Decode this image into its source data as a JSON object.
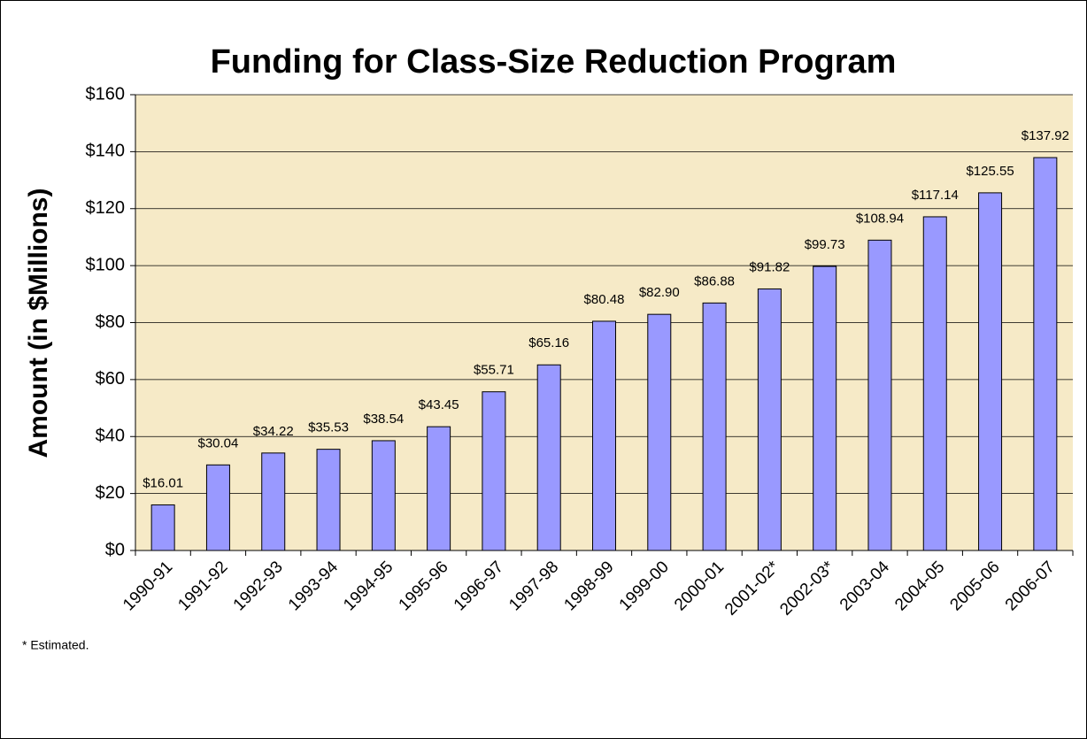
{
  "chart_data": {
    "type": "bar",
    "title": "Funding for Class-Size Reduction Program",
    "y_label": "Amount (in $Millions)",
    "footnote": "* Estimated.",
    "categories": [
      "1990-91",
      "1991-92",
      "1992-93",
      "1993-94",
      "1994-95",
      "1995-96",
      "1996-97",
      "1997-98",
      "1998-99",
      "1999-00",
      "2000-01",
      "2001-02*",
      "2002-03*",
      "2003-04",
      "2004-05",
      "2005-06",
      "2006-07"
    ],
    "values": [
      16.01,
      30.04,
      34.22,
      35.53,
      38.54,
      43.45,
      55.71,
      65.16,
      80.48,
      82.9,
      86.88,
      91.82,
      99.73,
      108.94,
      117.14,
      125.55,
      137.92
    ],
    "value_labels": [
      "$16.01",
      "$30.04",
      "$34.22",
      "$35.53",
      "$38.54",
      "$43.45",
      "$55.71",
      "$65.16",
      "$80.48",
      "$82.90",
      "$86.88",
      "$91.82",
      "$99.73",
      "$108.94",
      "$117.14",
      "$125.55",
      "$137.92"
    ],
    "color": "#9999ff",
    "ylim": [
      0,
      160
    ],
    "yticks": [
      {
        "value": 0,
        "label": "$0"
      },
      {
        "value": 20,
        "label": "$20"
      },
      {
        "value": 40,
        "label": "$40"
      },
      {
        "value": 60,
        "label": "$60"
      },
      {
        "value": 80,
        "label": "$80"
      },
      {
        "value": 100,
        "label": "$100"
      },
      {
        "value": 120,
        "label": "$120"
      },
      {
        "value": 140,
        "label": "$140"
      },
      {
        "value": 160,
        "label": "$160"
      }
    ],
    "grid": true
  }
}
